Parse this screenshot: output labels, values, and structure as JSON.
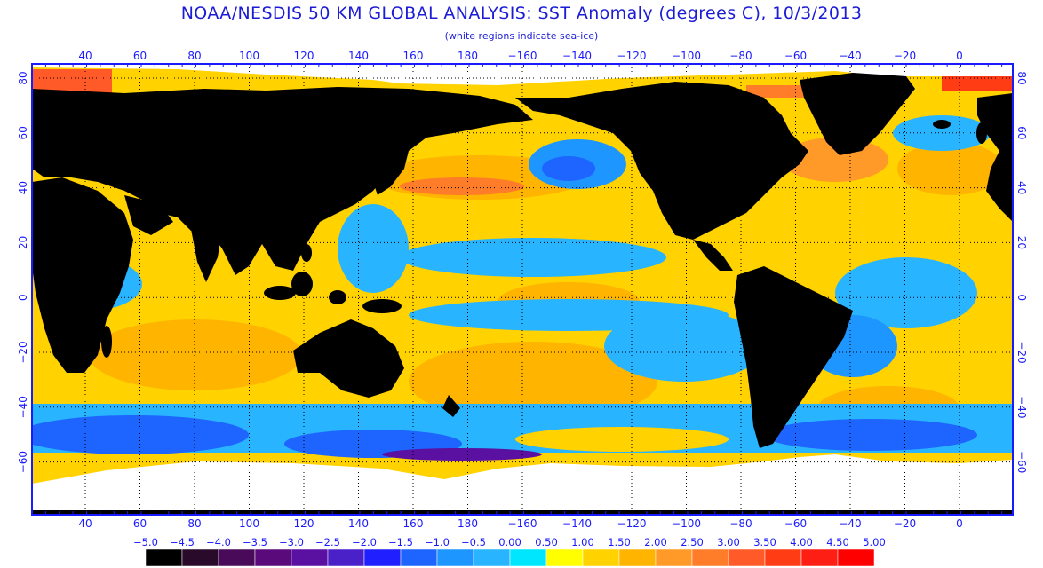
{
  "title": "NOAA/NESDIS 50 KM GLOBAL ANALYSIS: SST Anomaly (degrees C), 10/3/2013",
  "subtitle": "(white regions indicate sea-ice)",
  "longitude_ticks": [
    "40",
    "60",
    "80",
    "100",
    "120",
    "140",
    "160",
    "180",
    "−160",
    "−140",
    "−120",
    "−100",
    "−80",
    "−60",
    "−40",
    "−20",
    "0"
  ],
  "latitude_ticks": [
    "80",
    "60",
    "40",
    "20",
    "0",
    "−20",
    "−40",
    "−60"
  ],
  "color_scale": {
    "labels": [
      "−5.0",
      "−4.5",
      "−4.0",
      "−3.5",
      "−3.0",
      "−2.5",
      "−2.0",
      "−1.5",
      "−1.0",
      "−0.5",
      "0.00",
      "0.50",
      "1.00",
      "1.50",
      "2.00",
      "2.50",
      "3.00",
      "3.50",
      "4.00",
      "4.50",
      "5.00"
    ],
    "colors": [
      "#000000",
      "#2a0a2a",
      "#4a0a5a",
      "#5a0a7a",
      "#5a10a0",
      "#4a20c8",
      "#1f1fff",
      "#1e64ff",
      "#1e96ff",
      "#28b4ff",
      "#00e6ff",
      "#ffff00",
      "#ffd200",
      "#ffb400",
      "#ff9a28",
      "#ff7d28",
      "#ff5a28",
      "#ff3c14",
      "#ff1e14",
      "#ff0000"
    ]
  },
  "colors": {
    "land": "#000000",
    "sea_ice": "#ffffff",
    "frame": "#1a1aff",
    "text": "#1c1cd6"
  }
}
